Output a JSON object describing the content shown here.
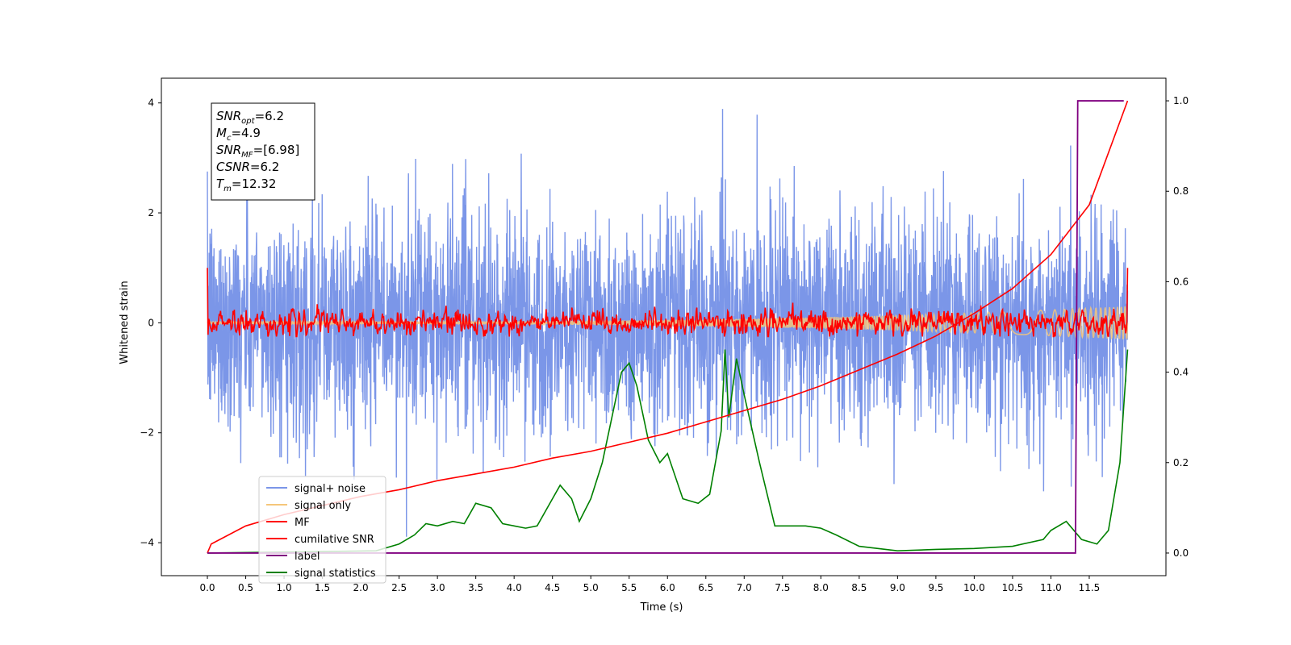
{
  "chart_data": {
    "type": "line",
    "xlabel": "Time (s)",
    "ylabel_left": "Whitened strain",
    "ylabel_right": "",
    "xlim": [
      -0.6,
      12.5
    ],
    "ylim_left": [
      -4.6,
      4.45
    ],
    "ylim_right": [
      -0.05,
      1.05
    ],
    "x_ticks": [
      "0.0",
      "0.5",
      "1.0",
      "1.5",
      "2.0",
      "2.5",
      "3.0",
      "3.5",
      "4.0",
      "4.5",
      "5.0",
      "5.5",
      "6.0",
      "6.5",
      "7.0",
      "7.5",
      "8.0",
      "8.5",
      "9.0",
      "9.5",
      "10.0",
      "10.5",
      "11.0",
      "11.5"
    ],
    "y_ticks_left": [
      "4",
      "2",
      "0",
      "−2",
      "−4"
    ],
    "y_ticks_right": [
      "1.0",
      "0.8",
      "0.6",
      "0.4",
      "0.2",
      "0.0"
    ],
    "grid": false,
    "legend_position": "lower-left",
    "info_box": {
      "position": "top-left",
      "lines": [
        {
          "var": "SNR",
          "sub": "opt",
          "value": "=6.2"
        },
        {
          "var": "M",
          "sub": "c",
          "value": "=4.9"
        },
        {
          "var": "SNR",
          "sub": "MF",
          "value": "=[6.98]"
        },
        {
          "var": "CSNR",
          "sub": "",
          "value": "=6.2"
        },
        {
          "var": "T",
          "sub": "m",
          "value": "=12.32"
        }
      ]
    },
    "series": [
      {
        "name": "signal+ noise",
        "color": "#7b96e8",
        "axis": "left",
        "x_range": [
          0,
          12.0
        ],
        "approx_amplitude": 1.6,
        "noise": true
      },
      {
        "name": "signal only",
        "color": "#f5c67a",
        "axis": "left",
        "x_range": [
          0,
          12.0
        ],
        "amplitude_start": 0.02,
        "amplitude_end": 0.3
      },
      {
        "name": "MF",
        "color": "#ff0000",
        "axis": "left",
        "x_range": [
          0,
          12.0
        ],
        "approx_amplitude": 0.2,
        "start_value": 1.0,
        "end_value": 1.0
      },
      {
        "name": "cumilative SNR",
        "color": "#ff0000",
        "axis": "right",
        "x": [
          0,
          0.05,
          0.5,
          1,
          1.5,
          2,
          2.5,
          3,
          3.5,
          4,
          4.5,
          5,
          5.5,
          6,
          6.5,
          7,
          7.5,
          8,
          8.5,
          9,
          9.5,
          10,
          10.5,
          11,
          11.5,
          12
        ],
        "y": [
          0.0,
          0.02,
          0.06,
          0.085,
          0.105,
          0.125,
          0.14,
          0.16,
          0.175,
          0.19,
          0.21,
          0.225,
          0.245,
          0.265,
          0.29,
          0.315,
          0.34,
          0.37,
          0.405,
          0.44,
          0.48,
          0.53,
          0.585,
          0.66,
          0.77,
          1.0
        ]
      },
      {
        "name": "label",
        "color": "#800080",
        "axis": "right",
        "x": [
          0,
          11.32,
          11.35,
          11.95
        ],
        "y": [
          0,
          0,
          1,
          1
        ]
      },
      {
        "name": "signal statistics",
        "color": "#008000",
        "axis": "right",
        "x": [
          0,
          2.2,
          2.5,
          2.7,
          2.85,
          3.0,
          3.2,
          3.35,
          3.5,
          3.7,
          3.85,
          4.0,
          4.15,
          4.3,
          4.5,
          4.6,
          4.75,
          4.85,
          5.0,
          5.15,
          5.3,
          5.4,
          5.5,
          5.6,
          5.75,
          5.9,
          6.0,
          6.2,
          6.4,
          6.55,
          6.7,
          6.75,
          6.8,
          6.9,
          7.0,
          7.2,
          7.4,
          7.55,
          7.8,
          8.0,
          8.2,
          8.5,
          9.0,
          9.5,
          10.0,
          10.5,
          10.9,
          11.0,
          11.2,
          11.4,
          11.6,
          11.75,
          11.9,
          12.0
        ],
        "y": [
          0.0,
          0.005,
          0.02,
          0.04,
          0.065,
          0.06,
          0.07,
          0.065,
          0.11,
          0.1,
          0.065,
          0.06,
          0.055,
          0.06,
          0.12,
          0.15,
          0.12,
          0.07,
          0.12,
          0.2,
          0.32,
          0.4,
          0.42,
          0.37,
          0.25,
          0.2,
          0.22,
          0.12,
          0.11,
          0.13,
          0.27,
          0.45,
          0.3,
          0.43,
          0.35,
          0.2,
          0.06,
          0.06,
          0.06,
          0.055,
          0.04,
          0.015,
          0.005,
          0.008,
          0.01,
          0.015,
          0.03,
          0.05,
          0.07,
          0.03,
          0.02,
          0.05,
          0.2,
          0.45
        ]
      }
    ]
  }
}
